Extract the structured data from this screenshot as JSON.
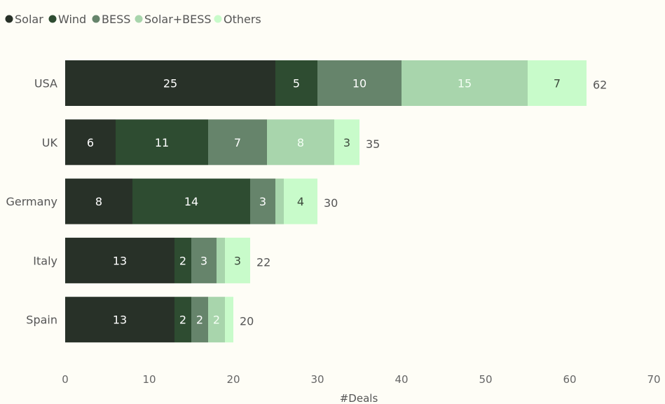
{
  "chart_data": {
    "type": "bar",
    "orientation": "horizontal",
    "stacked": true,
    "categories": [
      "USA",
      "UK",
      "Germany",
      "Italy",
      "Spain"
    ],
    "series": [
      {
        "name": "Solar",
        "color": "#283128",
        "values": [
          25,
          6,
          8,
          13,
          13
        ],
        "labels": [
          "25",
          "6",
          "8",
          "13",
          "13"
        ]
      },
      {
        "name": "Wind",
        "color": "#2e4c31",
        "values": [
          5,
          11,
          14,
          2,
          2
        ],
        "labels": [
          "5",
          "11",
          "14",
          "2",
          "2"
        ]
      },
      {
        "name": "BESS",
        "color": "#66846b",
        "values": [
          10,
          7,
          3,
          3,
          2
        ],
        "labels": [
          "10",
          "7",
          "3",
          "3",
          "2"
        ]
      },
      {
        "name": "Solar+BESS",
        "color": "#a8d5ac",
        "values": [
          15,
          8,
          1,
          1,
          2
        ],
        "labels": [
          "15",
          "8",
          "",
          "",
          "2"
        ]
      },
      {
        "name": "Others",
        "color": "#c8fbca",
        "values": [
          7,
          3,
          4,
          3,
          1
        ],
        "labels": [
          "7",
          "3",
          "4",
          "3",
          ""
        ]
      }
    ],
    "totals": [
      62,
      35,
      30,
      22,
      20
    ],
    "xlim": [
      0,
      70
    ],
    "xticks": [
      0,
      10,
      20,
      30,
      40,
      50,
      60,
      70
    ],
    "xlabel": "#Deals",
    "legend_position": "top-left",
    "grid": false
  }
}
